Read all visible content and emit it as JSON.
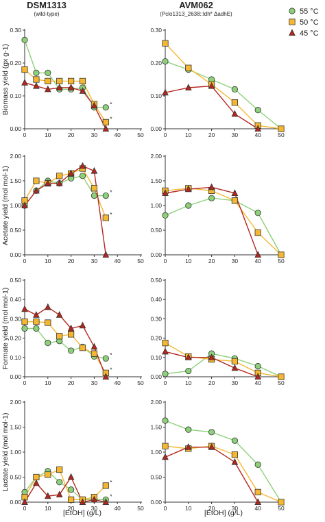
{
  "titles": {
    "left": "DSM1313",
    "left_sub": "(wild-type)",
    "right": "AVM062",
    "right_sub": "(Pclo1313_2638::ldh* ΔadhE)"
  },
  "legend": [
    {
      "name": "55 °C",
      "color": "#8dd07a",
      "marker": "circle"
    },
    {
      "name": "50 °C",
      "color": "#f5b731",
      "marker": "square"
    },
    {
      "name": "45 °C",
      "color": "#b3261e",
      "marker": "triangle"
    }
  ],
  "xlabel": "[EtOH] (g/L)",
  "chart_data": [
    {
      "type": "line",
      "row": "biomass",
      "strain": "DSM1313",
      "ylabel": "Biomass yield (gx g-1)",
      "ylim": [
        0,
        0.3
      ],
      "yticks": [
        "0.00",
        "0.10",
        "0.20",
        "0.30"
      ],
      "xlim": [
        0,
        50
      ],
      "xticks": [
        0,
        10,
        20,
        30,
        40,
        50
      ],
      "series": [
        {
          "name": "55 °C",
          "x": [
            0,
            5,
            10,
            15,
            20,
            25,
            30,
            35
          ],
          "y": [
            0.27,
            0.17,
            0.17,
            0.12,
            0.12,
            0.125,
            0.065,
            0.065
          ]
        },
        {
          "name": "50 °C",
          "x": [
            0,
            5,
            10,
            15,
            20,
            25,
            30,
            35
          ],
          "y": [
            0.18,
            0.15,
            0.145,
            0.145,
            0.145,
            0.145,
            0.075,
            0.02
          ]
        },
        {
          "name": "45 °C",
          "x": [
            0,
            5,
            10,
            15,
            20,
            25,
            30,
            35
          ],
          "y": [
            0.14,
            0.13,
            0.12,
            0.125,
            0.125,
            0.115,
            0.07,
            0.0
          ]
        }
      ],
      "annotations": [
        "*",
        "*"
      ]
    },
    {
      "type": "line",
      "row": "biomass",
      "strain": "AVM062",
      "ylabel": "",
      "ylim": [
        0,
        0.3
      ],
      "yticks": [
        "0.00",
        "0.10",
        "0.20",
        "0.30"
      ],
      "xlim": [
        0,
        50
      ],
      "xticks": [
        0,
        10,
        20,
        30,
        40,
        50
      ],
      "series": [
        {
          "name": "55 °C",
          "x": [
            0,
            10,
            20,
            30,
            40,
            50
          ],
          "y": [
            0.205,
            0.18,
            0.15,
            0.12,
            0.057,
            0.0
          ]
        },
        {
          "name": "50 °C",
          "x": [
            0,
            10,
            20,
            30,
            40,
            50
          ],
          "y": [
            0.26,
            0.185,
            0.135,
            0.08,
            0.01,
            0.0
          ]
        },
        {
          "name": "45 °C",
          "x": [
            0,
            10,
            20,
            30,
            40
          ],
          "y": [
            0.11,
            0.125,
            0.13,
            0.045,
            0.0
          ]
        }
      ],
      "annotations": []
    },
    {
      "type": "line",
      "row": "acetate",
      "strain": "DSM1313",
      "ylabel": "Acetate yield (mol mol-1)",
      "ylim": [
        0,
        2.0
      ],
      "yticks": [
        "0.00",
        "0.50",
        "1.00",
        "1.50",
        "2.00"
      ],
      "xlim": [
        0,
        50
      ],
      "xticks": [
        0,
        10,
        20,
        30,
        40,
        50
      ],
      "series": [
        {
          "name": "55 °C",
          "x": [
            0,
            5,
            10,
            15,
            20,
            25,
            30,
            35
          ],
          "y": [
            1.0,
            1.3,
            1.5,
            1.45,
            1.55,
            1.6,
            1.2,
            1.2
          ]
        },
        {
          "name": "50 °C",
          "x": [
            0,
            5,
            10,
            15,
            20,
            25,
            30,
            35
          ],
          "y": [
            1.1,
            1.5,
            1.45,
            1.6,
            1.65,
            1.75,
            1.35,
            0.75
          ]
        },
        {
          "name": "45 °C",
          "x": [
            0,
            5,
            10,
            15,
            20,
            25,
            30,
            35
          ],
          "y": [
            1.0,
            1.3,
            1.45,
            1.45,
            1.65,
            1.8,
            1.7,
            0.0
          ]
        }
      ],
      "annotations": [
        "*",
        "*"
      ]
    },
    {
      "type": "line",
      "row": "acetate",
      "strain": "AVM062",
      "ylabel": "",
      "ylim": [
        0,
        2.0
      ],
      "yticks": [
        "0.00",
        "0.50",
        "1.00",
        "1.50",
        "2.00"
      ],
      "xlim": [
        0,
        50
      ],
      "xticks": [
        0,
        10,
        20,
        30,
        40,
        50
      ],
      "series": [
        {
          "name": "55 °C",
          "x": [
            0,
            10,
            20,
            30,
            40,
            50
          ],
          "y": [
            0.8,
            1.0,
            1.15,
            1.1,
            0.85,
            0.0
          ]
        },
        {
          "name": "50 °C",
          "x": [
            0,
            10,
            20,
            30,
            40,
            50
          ],
          "y": [
            1.3,
            1.35,
            1.3,
            1.1,
            0.45,
            0.0
          ]
        },
        {
          "name": "45 °C",
          "x": [
            0,
            10,
            20,
            30,
            40
          ],
          "y": [
            1.25,
            1.33,
            1.37,
            1.25,
            0.0
          ]
        }
      ],
      "annotations": []
    },
    {
      "type": "line",
      "row": "formate",
      "strain": "DSM1313",
      "ylabel": "Formate yield (mol mol-1)",
      "ylim": [
        0,
        0.5
      ],
      "yticks": [
        "0.00",
        "0.10",
        "0.20",
        "0.30",
        "0.40",
        "0.50"
      ],
      "xlim": [
        0,
        50
      ],
      "xticks": [
        0,
        10,
        20,
        30,
        40,
        50
      ],
      "series": [
        {
          "name": "55 °C",
          "x": [
            0,
            5,
            10,
            15,
            20,
            25,
            30,
            35
          ],
          "y": [
            0.25,
            0.25,
            0.175,
            0.185,
            0.135,
            0.155,
            0.105,
            0.095
          ]
        },
        {
          "name": "50 °C",
          "x": [
            0,
            5,
            10,
            15,
            20,
            25,
            30,
            35
          ],
          "y": [
            0.285,
            0.285,
            0.28,
            0.21,
            0.22,
            0.15,
            0.12,
            0.02
          ]
        },
        {
          "name": "45 °C",
          "x": [
            0,
            5,
            10,
            15,
            20,
            25,
            30,
            35
          ],
          "y": [
            0.35,
            0.32,
            0.36,
            0.32,
            0.25,
            0.265,
            0.155,
            0.0
          ]
        }
      ],
      "annotations": [
        "*",
        "*"
      ]
    },
    {
      "type": "line",
      "row": "formate",
      "strain": "AVM062",
      "ylabel": "",
      "ylim": [
        0,
        0.5
      ],
      "yticks": [
        "0.00",
        "0.10",
        "0.20",
        "0.30",
        "0.40",
        "0.50"
      ],
      "xlim": [
        0,
        50
      ],
      "xticks": [
        0,
        10,
        20,
        30,
        40,
        50
      ],
      "series": [
        {
          "name": "55 °C",
          "x": [
            0,
            10,
            20,
            30,
            40,
            50
          ],
          "y": [
            0.015,
            0.03,
            0.12,
            0.095,
            0.055,
            0.0
          ]
        },
        {
          "name": "50 °C",
          "x": [
            0,
            10,
            20,
            30,
            40,
            50
          ],
          "y": [
            0.175,
            0.105,
            0.09,
            0.08,
            0.02,
            0.0
          ]
        },
        {
          "name": "45 °C",
          "x": [
            0,
            10,
            20,
            30,
            40
          ],
          "y": [
            0.13,
            0.1,
            0.1,
            0.045,
            0.0
          ]
        }
      ],
      "annotations": []
    },
    {
      "type": "line",
      "row": "lactate",
      "strain": "DSM1313",
      "ylabel": "Lactate yield (mol mol-1)",
      "ylim": [
        0,
        2.0
      ],
      "yticks": [
        "0.00",
        "0.50",
        "1.00",
        "1.50",
        "2.00"
      ],
      "xlim": [
        0,
        50
      ],
      "xticks": [
        0,
        10,
        20,
        30,
        40,
        50
      ],
      "series": [
        {
          "name": "55 °C",
          "x": [
            0,
            5,
            10,
            15,
            20,
            25,
            30,
            35
          ],
          "y": [
            0.2,
            0.5,
            0.62,
            0.4,
            0.25,
            0.05,
            0.05,
            0.05
          ]
        },
        {
          "name": "50 °C",
          "x": [
            0,
            5,
            10,
            15,
            20,
            25,
            30,
            35
          ],
          "y": [
            0.1,
            0.5,
            0.55,
            0.65,
            0.05,
            0.05,
            0.1,
            0.33
          ]
        },
        {
          "name": "45 °C",
          "x": [
            0,
            5,
            10,
            15,
            20,
            25,
            30,
            35
          ],
          "y": [
            0.0,
            0.38,
            0.12,
            0.15,
            0.5,
            0.0,
            0.05,
            0.0
          ]
        }
      ],
      "annotations": [
        "*",
        "*"
      ]
    },
    {
      "type": "line",
      "row": "lactate",
      "strain": "AVM062",
      "ylabel": "",
      "ylim": [
        0,
        2.0
      ],
      "yticks": [
        "0.00",
        "0.50",
        "1.00",
        "1.50",
        "2.00"
      ],
      "xlim": [
        0,
        50
      ],
      "xticks": [
        0,
        10,
        20,
        30,
        40,
        50
      ],
      "series": [
        {
          "name": "55 °C",
          "x": [
            0,
            10,
            20,
            30,
            40,
            50
          ],
          "y": [
            1.63,
            1.45,
            1.4,
            1.23,
            0.75,
            0.0
          ]
        },
        {
          "name": "50 °C",
          "x": [
            0,
            10,
            20,
            30,
            40,
            50
          ],
          "y": [
            1.12,
            1.07,
            1.12,
            0.95,
            0.2,
            0.0
          ]
        },
        {
          "name": "45 °C",
          "x": [
            0,
            10,
            20,
            30,
            40
          ],
          "y": [
            0.9,
            1.1,
            1.1,
            0.8,
            0.0
          ]
        }
      ],
      "annotations": []
    }
  ]
}
